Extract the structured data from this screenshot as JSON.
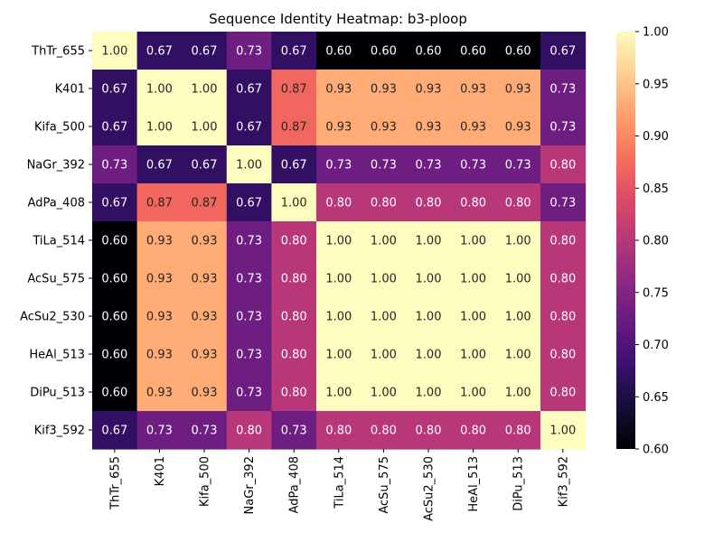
{
  "chart_data": {
    "type": "heatmap",
    "title": "Sequence Identity Heatmap: b3-ploop",
    "xlabel": "",
    "ylabel": "",
    "labels": [
      "ThTr_655",
      "K401",
      "Kifa_500",
      "NaGr_392",
      "AdPa_408",
      "TiLa_514",
      "AcSu_575",
      "AcSu2_530",
      "HeAl_513",
      "DiPu_513",
      "Kif3_592"
    ],
    "matrix": [
      [
        1.0,
        0.67,
        0.67,
        0.73,
        0.67,
        0.6,
        0.6,
        0.6,
        0.6,
        0.6,
        0.67
      ],
      [
        0.67,
        1.0,
        1.0,
        0.67,
        0.87,
        0.93,
        0.93,
        0.93,
        0.93,
        0.93,
        0.73
      ],
      [
        0.67,
        1.0,
        1.0,
        0.67,
        0.87,
        0.93,
        0.93,
        0.93,
        0.93,
        0.93,
        0.73
      ],
      [
        0.73,
        0.67,
        0.67,
        1.0,
        0.67,
        0.73,
        0.73,
        0.73,
        0.73,
        0.73,
        0.8
      ],
      [
        0.67,
        0.87,
        0.87,
        0.67,
        1.0,
        0.8,
        0.8,
        0.8,
        0.8,
        0.8,
        0.73
      ],
      [
        0.6,
        0.93,
        0.93,
        0.73,
        0.8,
        1.0,
        1.0,
        1.0,
        1.0,
        1.0,
        0.8
      ],
      [
        0.6,
        0.93,
        0.93,
        0.73,
        0.8,
        1.0,
        1.0,
        1.0,
        1.0,
        1.0,
        0.8
      ],
      [
        0.6,
        0.93,
        0.93,
        0.73,
        0.8,
        1.0,
        1.0,
        1.0,
        1.0,
        1.0,
        0.8
      ],
      [
        0.6,
        0.93,
        0.93,
        0.73,
        0.8,
        1.0,
        1.0,
        1.0,
        1.0,
        1.0,
        0.8
      ],
      [
        0.6,
        0.93,
        0.93,
        0.73,
        0.8,
        1.0,
        1.0,
        1.0,
        1.0,
        1.0,
        0.8
      ],
      [
        0.67,
        0.73,
        0.73,
        0.8,
        0.73,
        0.8,
        0.8,
        0.8,
        0.8,
        0.8,
        1.0
      ]
    ],
    "value_format": "2 decimals",
    "colormap": "magma",
    "colorbar": {
      "range": [
        0.6,
        1.0
      ],
      "ticks": [
        "0.60",
        "0.65",
        "0.70",
        "0.75",
        "0.80",
        "0.85",
        "0.90",
        "0.95",
        "1.00"
      ]
    },
    "annotation_colors": {
      "dark_cell_text": "#ffffff",
      "light_cell_text": "#262626"
    },
    "grid": false,
    "legend": "colorbar-right"
  }
}
